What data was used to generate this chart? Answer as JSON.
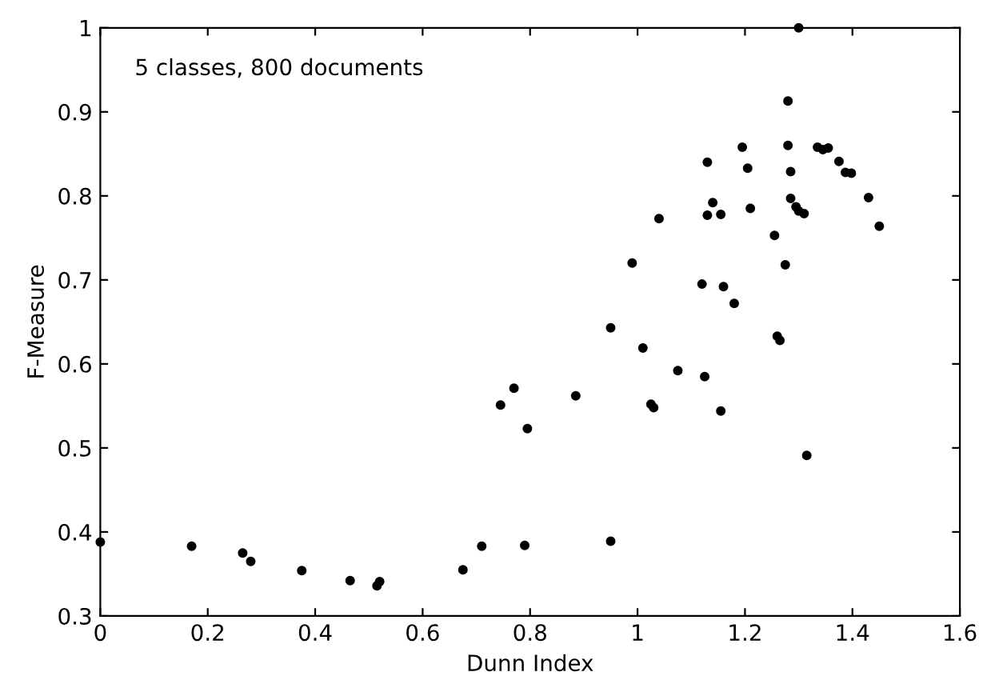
{
  "chart_data": {
    "type": "scatter",
    "xlabel": "Dunn Index",
    "ylabel": "F-Measure",
    "annotations": [
      "5 classes, 800 documents"
    ],
    "xlim": [
      0,
      1.6
    ],
    "ylim": [
      0.3,
      1
    ],
    "xticks": [
      0,
      0.2,
      0.4,
      0.6,
      0.8,
      1,
      1.2,
      1.4,
      1.6
    ],
    "yticks": [
      0.3,
      0.4,
      0.5,
      0.6,
      0.7,
      0.8,
      0.9,
      1
    ],
    "grid": false,
    "legend": false,
    "marker": "circle",
    "series": [
      {
        "color": "#000000",
        "x": [
          0.0,
          0.17,
          0.265,
          0.28,
          0.375,
          0.465,
          0.515,
          0.52,
          0.675,
          0.71,
          0.79,
          0.95,
          0.745,
          0.77,
          0.795,
          0.885,
          0.95,
          0.99,
          1.01,
          1.025,
          1.03,
          1.04,
          1.075,
          1.12,
          1.125,
          1.13,
          1.13,
          1.14,
          1.155,
          1.16,
          1.155,
          1.18,
          1.195,
          1.205,
          1.21,
          1.255,
          1.26,
          1.265,
          1.275,
          1.28,
          1.28,
          1.285,
          1.285,
          1.295,
          1.3,
          1.3,
          1.31,
          1.315,
          1.335,
          1.345,
          1.355,
          1.375,
          1.387,
          1.398,
          1.43,
          1.45
        ],
        "values": [
          0.388,
          0.383,
          0.375,
          0.365,
          0.354,
          0.342,
          0.336,
          0.341,
          0.355,
          0.383,
          0.384,
          0.389,
          0.551,
          0.571,
          0.523,
          0.562,
          0.643,
          0.72,
          0.619,
          0.552,
          0.548,
          0.773,
          0.592,
          0.695,
          0.585,
          0.777,
          0.84,
          0.792,
          0.778,
          0.692,
          0.544,
          0.672,
          0.858,
          0.833,
          0.785,
          0.753,
          0.633,
          0.628,
          0.718,
          0.913,
          0.86,
          0.829,
          0.797,
          0.787,
          0.782,
          1.0,
          0.779,
          0.491,
          0.858,
          0.855,
          0.857,
          0.841,
          0.828,
          0.827,
          0.798,
          0.764
        ]
      }
    ]
  }
}
